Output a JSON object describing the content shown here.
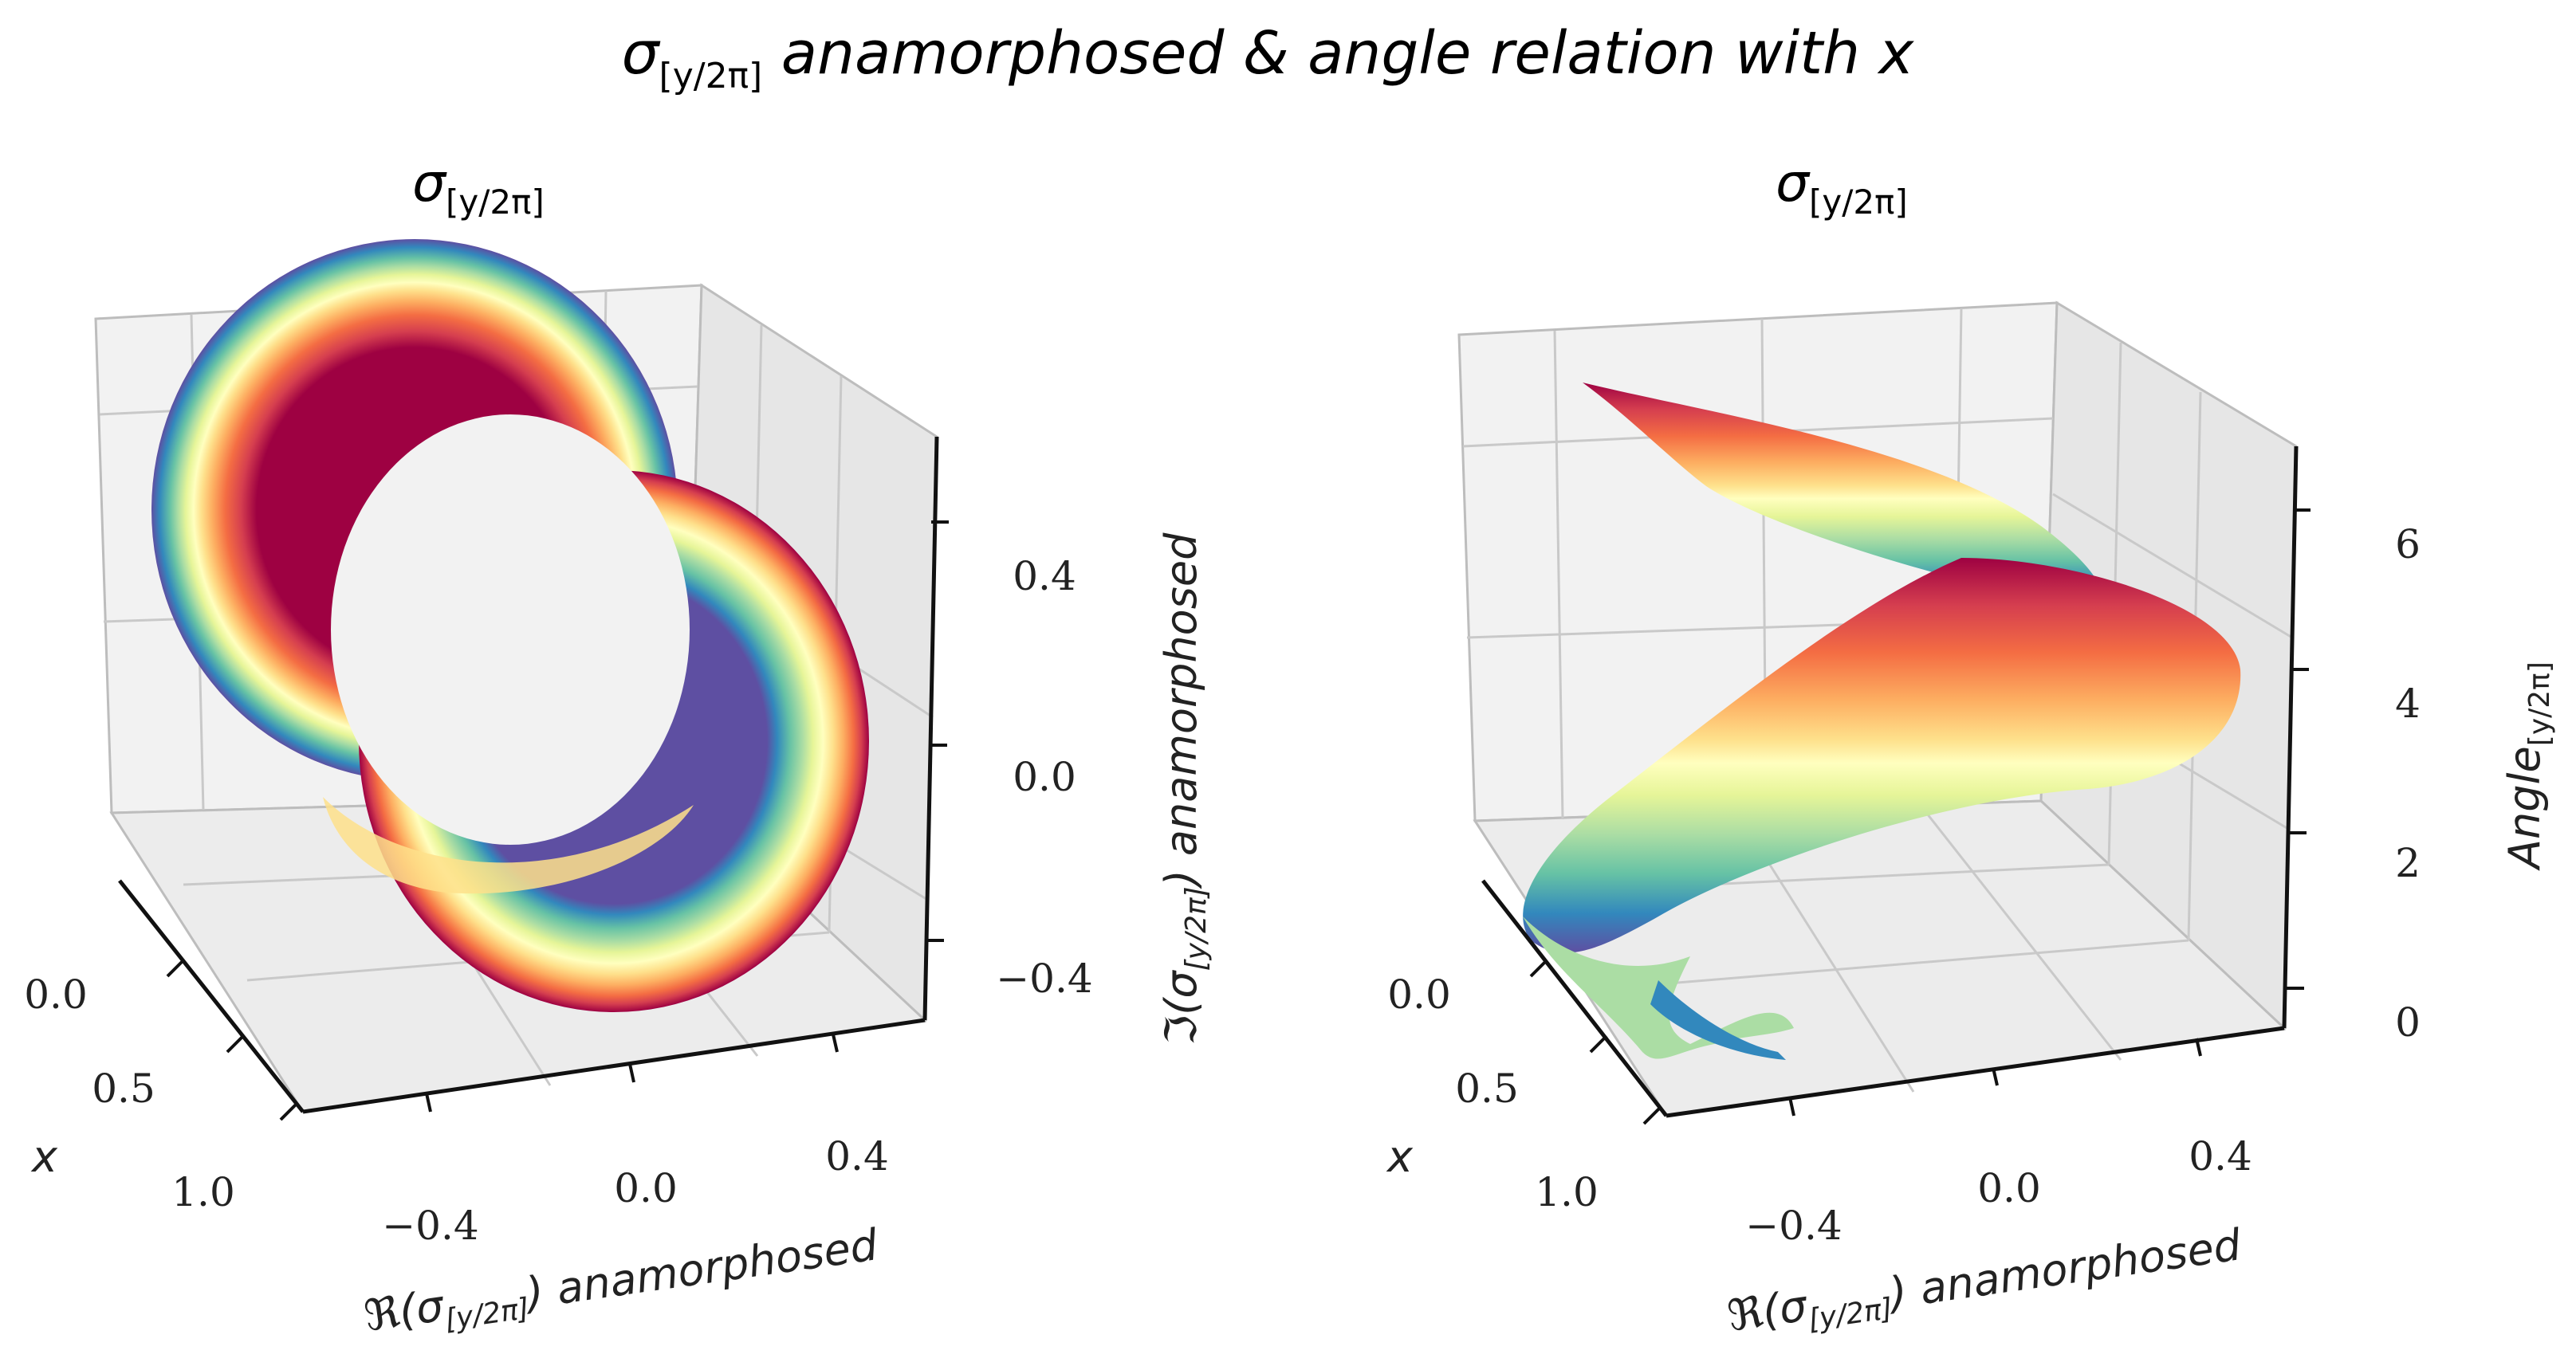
{
  "figure": {
    "suptitle_main": "σ",
    "suptitle_sub": "[y/2π]",
    "suptitle_rest": " anamorphosed & angle relation with x"
  },
  "chart_data": [
    {
      "type": "scatter",
      "projection": "3d",
      "title_main": "σ",
      "title_sub": "[y/2π]",
      "axes": {
        "x": {
          "label": "x",
          "ticks": [
            "0.0",
            "0.5",
            "1.0"
          ],
          "range": [
            0,
            1
          ]
        },
        "y": {
          "label_main": "ℜ(σ",
          "label_sub": "[y/2π]",
          "label_rest": ") anamorphosed",
          "ticks": [
            "−0.4",
            "0.0",
            "0.4"
          ],
          "range": [
            -0.55,
            0.55
          ]
        },
        "z": {
          "label_main": "ℑ(σ",
          "label_sub": "[y/2π]",
          "label_rest": ") anamorphosed",
          "ticks": [
            "−0.4",
            "0.0",
            "0.4"
          ],
          "range": [
            -0.55,
            0.55
          ]
        }
      },
      "shape": "torus-ring",
      "colormap": [
        "#9e0142",
        "#d53e4f",
        "#f46d43",
        "#fdae61",
        "#fee08b",
        "#ffffbf",
        "#e6f598",
        "#abdda4",
        "#66c2a5",
        "#3288bd",
        "#5e4fa2"
      ],
      "color_encodes": "x",
      "grid": true
    },
    {
      "type": "scatter",
      "projection": "3d",
      "title_main": "σ",
      "title_sub": "[y/2π]",
      "axes": {
        "x": {
          "label": "x",
          "ticks": [
            "0.0",
            "0.5",
            "1.0"
          ],
          "range": [
            0,
            1
          ]
        },
        "y": {
          "label_main": "ℜ(σ",
          "label_sub": "[y/2π]",
          "label_rest": ") anamorphosed",
          "ticks": [
            "−0.4",
            "0.0",
            "0.4"
          ],
          "range": [
            -0.55,
            0.55
          ]
        },
        "z": {
          "label_main": "Angle",
          "label_sub": "[y/2π]",
          "label_rest": "",
          "ticks": [
            "0",
            "2",
            "4",
            "6"
          ],
          "range": [
            0,
            7
          ]
        }
      },
      "shape": "helix-ribbon",
      "colormap": [
        "#9e0142",
        "#d53e4f",
        "#f46d43",
        "#fdae61",
        "#fee08b",
        "#ffffbf",
        "#e6f598",
        "#abdda4",
        "#66c2a5",
        "#3288bd",
        "#5e4fa2"
      ],
      "color_encodes": "x",
      "grid": true
    }
  ]
}
